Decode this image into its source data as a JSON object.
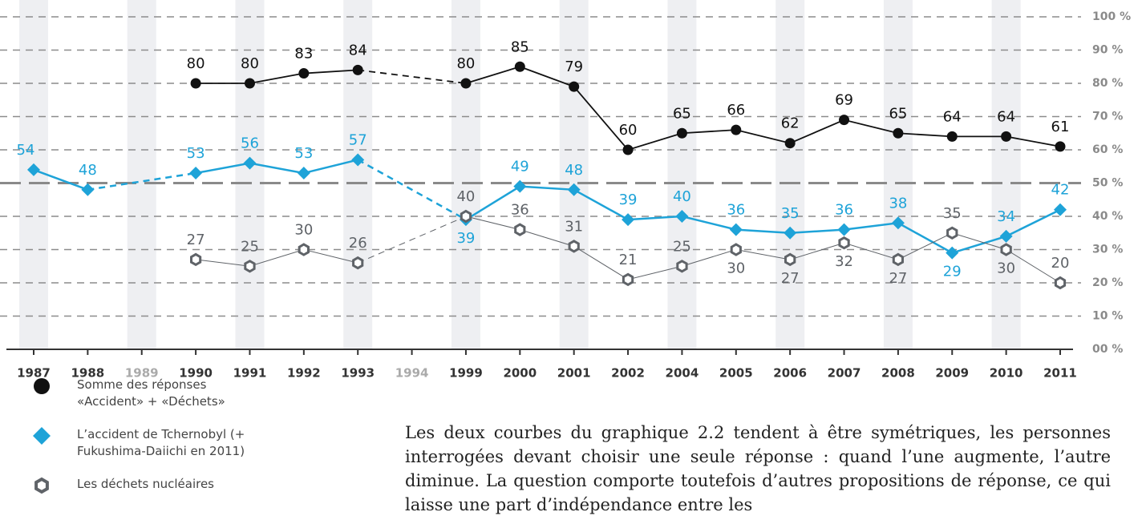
{
  "chart_data": {
    "type": "line",
    "categories": [
      "1987",
      "1988",
      "1989",
      "1990",
      "1991",
      "1992",
      "1993",
      "1994",
      "1999",
      "2000",
      "2001",
      "2002",
      "2004",
      "2005",
      "2006",
      "2007",
      "2008",
      "2009",
      "2010",
      "2011"
    ],
    "series": [
      {
        "name": "Somme des réponses «Accident» + «Déchets»",
        "color": "#111111",
        "marker": "circle",
        "values": [
          null,
          null,
          null,
          80,
          80,
          83,
          84,
          null,
          80,
          85,
          79,
          60,
          65,
          66,
          62,
          69,
          65,
          64,
          64,
          61
        ]
      },
      {
        "name": "L’accident de Tchernobyl (+ Fukushima-Daiichi en 2011)",
        "color": "#1ea3d8",
        "marker": "diamond",
        "values": [
          54,
          48,
          null,
          53,
          56,
          53,
          57,
          null,
          39,
          49,
          48,
          39,
          40,
          36,
          35,
          36,
          38,
          29,
          34,
          42
        ]
      },
      {
        "name": "Les déchets nucléaires",
        "color": "#5f6368",
        "marker": "hexagon",
        "values": [
          null,
          null,
          null,
          27,
          25,
          30,
          26,
          null,
          40,
          36,
          31,
          21,
          25,
          30,
          27,
          32,
          27,
          35,
          30,
          20
        ]
      }
    ],
    "ylim": [
      0,
      100
    ],
    "yticks": [
      {
        "value": 0,
        "label": "00 %"
      },
      {
        "value": 10,
        "label": "10 %"
      },
      {
        "value": 20,
        "label": "20 %"
      },
      {
        "value": 30,
        "label": "30 %"
      },
      {
        "value": 40,
        "label": "40 %"
      },
      {
        "value": 50,
        "label": "50 %"
      },
      {
        "value": 60,
        "label": "60 %"
      },
      {
        "value": 70,
        "label": "70 %"
      },
      {
        "value": 80,
        "label": "80 %"
      },
      {
        "value": 90,
        "label": "90 %"
      },
      {
        "value": 100,
        "label": "100 %"
      }
    ],
    "grid": true,
    "reference_line": 50
  },
  "paragraph": "Les deux courbes du graphique 2.2 tendent à être symétriques, les personnes interrogées devant choisir une seule réponse : quand l’une augmente, l’autre diminue. La question comporte toutefois d’autres propositions de réponse, ce qui laisse une part d’indépendance entre les"
}
